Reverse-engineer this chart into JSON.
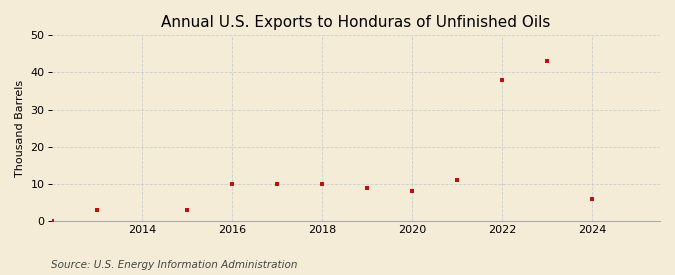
{
  "title": "Annual U.S. Exports to Honduras of Unfinished Oils",
  "ylabel": "Thousand Barrels",
  "source_text": "Source: U.S. Energy Information Administration",
  "x_values": [
    2012,
    2013,
    2015,
    2016,
    2017,
    2018,
    2019,
    2020,
    2021,
    2022,
    2023,
    2024
  ],
  "y_values": [
    0,
    3,
    3,
    10,
    10,
    10,
    9,
    8,
    11,
    38,
    43,
    6
  ],
  "xlim": [
    2012.0,
    2025.5
  ],
  "ylim": [
    0,
    50
  ],
  "xticks": [
    2014,
    2016,
    2018,
    2020,
    2022,
    2024
  ],
  "yticks": [
    0,
    10,
    20,
    30,
    40,
    50
  ],
  "marker_color": "#bb1111",
  "marker": "s",
  "marker_size": 3.5,
  "bg_color": "#f5ecd7",
  "plot_bg_color": "#f5ecd7",
  "grid_color": "#cccccc",
  "grid_h_style": "--",
  "grid_v_style": "--",
  "title_fontsize": 11,
  "label_fontsize": 8,
  "tick_fontsize": 8,
  "source_fontsize": 7.5
}
